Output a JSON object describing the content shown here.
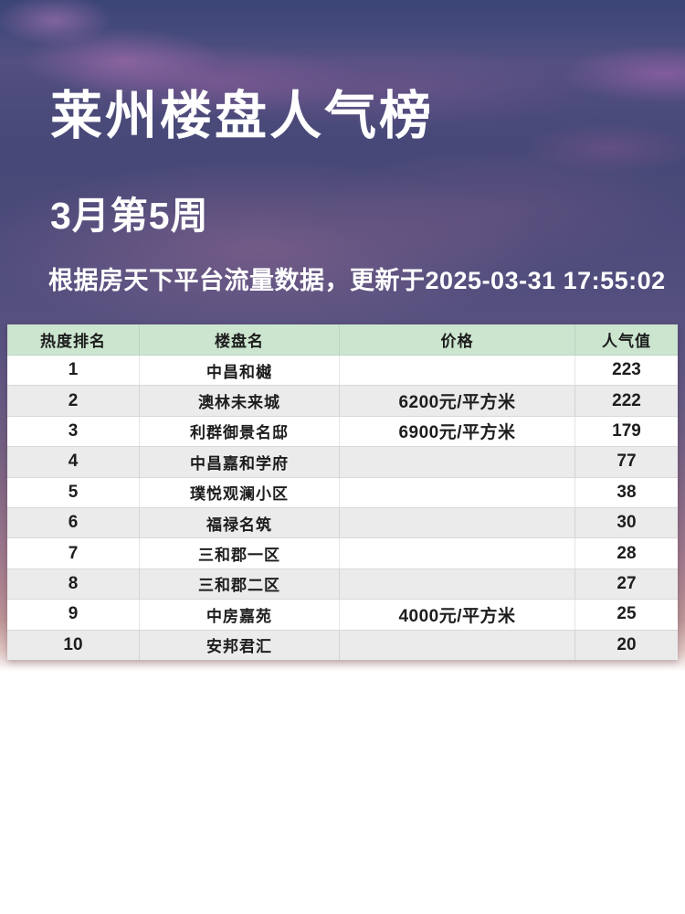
{
  "header": {
    "title": "莱州楼盘人气榜",
    "subtitle": "3月第5周",
    "caption": "根据房天下平台流量数据，更新于2025-03-31 17:55:02"
  },
  "chart_data": {
    "type": "table",
    "title": "莱州楼盘人气榜",
    "subtitle": "3月第5周",
    "columns": [
      "热度排名",
      "楼盘名",
      "价格",
      "人气值"
    ],
    "rows": [
      {
        "rank": "1",
        "name": "中昌和樾",
        "price": "",
        "popularity": "223"
      },
      {
        "rank": "2",
        "name": "澳林未来城",
        "price": "6200元/平方米",
        "popularity": "222"
      },
      {
        "rank": "3",
        "name": "利群御景名邸",
        "price": "6900元/平方米",
        "popularity": "179"
      },
      {
        "rank": "4",
        "name": "中昌嘉和学府",
        "price": "",
        "popularity": "77"
      },
      {
        "rank": "5",
        "name": "璞悦观澜小区",
        "price": "",
        "popularity": "38"
      },
      {
        "rank": "6",
        "name": "福禄名筑",
        "price": "",
        "popularity": "30"
      },
      {
        "rank": "7",
        "name": "三和郡一区",
        "price": "",
        "popularity": "28"
      },
      {
        "rank": "8",
        "name": "三和郡二区",
        "price": "",
        "popularity": "27"
      },
      {
        "rank": "9",
        "name": "中房嘉苑",
        "price": "4000元/平方米",
        "popularity": "25"
      },
      {
        "rank": "10",
        "name": "安邦君汇",
        "price": "",
        "popularity": "20"
      }
    ],
    "popularity_values": [
      223,
      222,
      179,
      77,
      38,
      30,
      28,
      27,
      25,
      20
    ]
  },
  "colors": {
    "header_green": "#cbe5cf",
    "row_alt_gray": "#ebebeb",
    "row_white": "#ffffff",
    "cell_text": "#1d1d1d",
    "hero_text": "#ffffff",
    "sky_top_blue": "#3c4577",
    "sky_mid_purple": "#5a5380",
    "sky_bottom_pink": "#ac8490",
    "cloud_pink": "#b072b4"
  }
}
